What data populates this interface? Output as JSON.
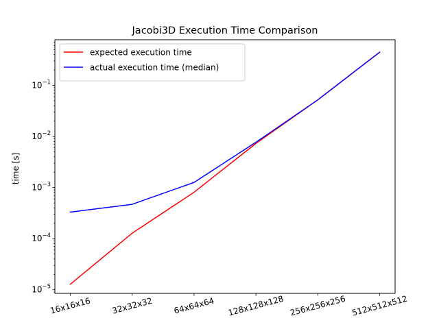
{
  "chart_data": {
    "type": "line",
    "title": "Jacobi3D Execution Time Comparison",
    "xlabel": "",
    "ylabel": "time [s]",
    "categories": [
      "16x16x16",
      "32x32x32",
      "64x64x64",
      "128x128x128",
      "256x256x256",
      "512x512x512"
    ],
    "yscale": "log",
    "ylim": [
      8.5e-06,
      0.78
    ],
    "yticks": [
      {
        "value": 1e-05,
        "base": "10",
        "exp": "−5"
      },
      {
        "value": 0.0001,
        "base": "10",
        "exp": "−4"
      },
      {
        "value": 0.001,
        "base": "10",
        "exp": "−3"
      },
      {
        "value": 0.01,
        "base": "10",
        "exp": "−2"
      },
      {
        "value": 0.1,
        "base": "10",
        "exp": "−1"
      }
    ],
    "grid": false,
    "legend": "top-left",
    "series": [
      {
        "name": "expected execution time",
        "color": "#ff0000",
        "values": [
          1.28e-05,
          0.000128,
          0.00081,
          0.0073,
          0.052,
          0.445
        ]
      },
      {
        "name": "actual execution time (median)",
        "color": "#0000ff",
        "values": [
          0.00033,
          0.00047,
          0.00126,
          0.0077,
          0.052,
          0.445
        ]
      }
    ]
  }
}
